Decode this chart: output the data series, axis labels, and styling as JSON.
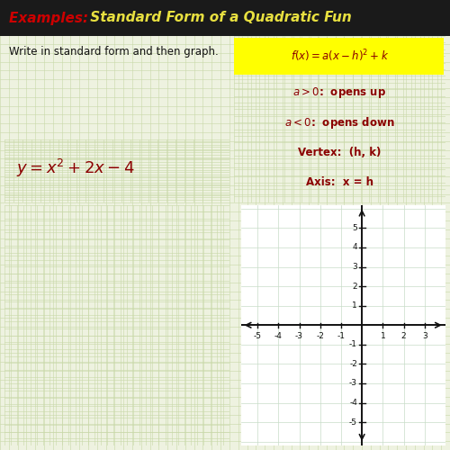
{
  "bg_color": "#eef2e0",
  "grid_color_major": "#c8d8a8",
  "grid_color_minor": "#dce8bc",
  "title_examples": "Examples: ",
  "title_main": " Standard Form of a Quadratic Fun",
  "subtitle": "Write in standard form and then graph.",
  "axis_xlim": [
    -5.8,
    4.0
  ],
  "axis_ylim": [
    -6.2,
    6.2
  ],
  "xticks": [
    -5,
    -4,
    -3,
    -2,
    -1,
    1,
    2,
    3
  ],
  "yticks": [
    -5,
    -4,
    -3,
    -2,
    -1,
    1,
    2,
    3,
    4,
    5
  ],
  "red_color": "#cc0000",
  "dark_red": "#8b0000",
  "navy": "#1a237e",
  "highlight_yellow": "#ffff00",
  "white": "#ffffff",
  "black": "#111111"
}
